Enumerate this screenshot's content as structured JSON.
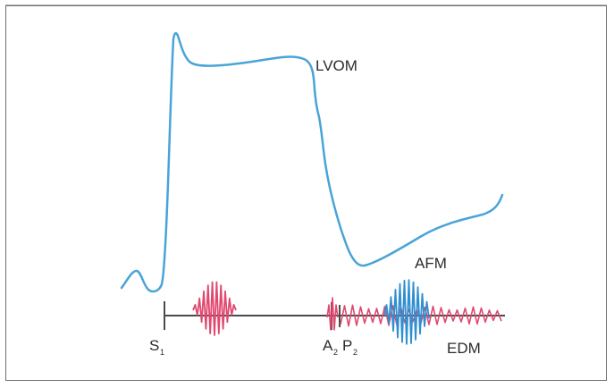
{
  "diagram": {
    "labels": {
      "lvom": "LVOM",
      "afm": "AFM",
      "edm": "EDM",
      "s1_main": "S",
      "s1_sub": "1",
      "a2_main": "A",
      "a2_sub": "2",
      "p2_main": "P",
      "p2_sub": "2"
    },
    "colors": {
      "lvom_curve": "#4aa3d8",
      "baseline": "#4a4a4a",
      "heart_sound": "#e0486f",
      "afm_murmur": "#2f8fd0",
      "edm_murmur": "#e0486f",
      "frame": "#6f6f6f"
    }
  }
}
